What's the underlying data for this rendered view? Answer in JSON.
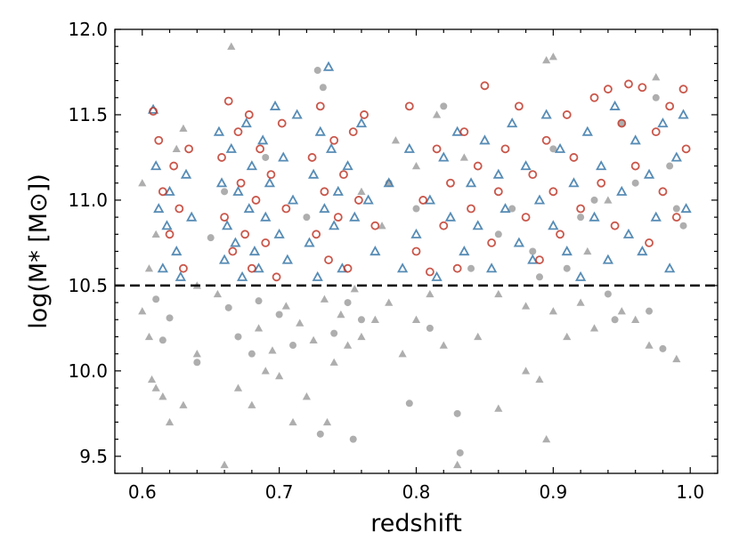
{
  "chart_data": {
    "type": "scatter",
    "xlabel": "redshift",
    "ylabel": "log(M* [M⊙])",
    "xlim": [
      0.58,
      1.02
    ],
    "ylim": [
      9.4,
      12.0
    ],
    "x_ticks": [
      "0.6",
      "0.7",
      "0.8",
      "0.9",
      "1.0"
    ],
    "y_ticks": [
      "9.5",
      "10.0",
      "10.5",
      "11.0",
      "11.5",
      "12.0"
    ],
    "threshold_line": {
      "y": 10.5,
      "style": "dashed",
      "color": "#000000"
    },
    "grid": false,
    "legend": "none",
    "colors": {
      "gray": "#8c8c8c",
      "blue": "#3a78a8",
      "red": "#c0392b"
    },
    "series": [
      {
        "marker": "circle-filled",
        "color": "gray",
        "points": [
          [
            0.61,
            10.42
          ],
          [
            0.62,
            10.31
          ],
          [
            0.615,
            10.18
          ],
          [
            0.64,
            10.05
          ],
          [
            0.663,
            10.37
          ],
          [
            0.67,
            10.2
          ],
          [
            0.68,
            10.1
          ],
          [
            0.685,
            10.41
          ],
          [
            0.7,
            10.33
          ],
          [
            0.71,
            10.15
          ],
          [
            0.728,
            11.76
          ],
          [
            0.732,
            11.66
          ],
          [
            0.73,
            9.63
          ],
          [
            0.754,
            9.6
          ],
          [
            0.74,
            10.22
          ],
          [
            0.75,
            10.4
          ],
          [
            0.76,
            10.3
          ],
          [
            0.795,
            9.81
          ],
          [
            0.83,
            9.75
          ],
          [
            0.832,
            9.52
          ],
          [
            0.82,
            11.55
          ],
          [
            0.81,
            10.25
          ],
          [
            0.84,
            10.6
          ],
          [
            0.86,
            10.8
          ],
          [
            0.87,
            10.95
          ],
          [
            0.885,
            10.7
          ],
          [
            0.9,
            11.3
          ],
          [
            0.92,
            10.9
          ],
          [
            0.93,
            11.0
          ],
          [
            0.94,
            10.45
          ],
          [
            0.945,
            10.3
          ],
          [
            0.96,
            11.1
          ],
          [
            0.97,
            10.35
          ],
          [
            0.98,
            10.13
          ],
          [
            0.985,
            11.2
          ],
          [
            0.99,
            10.95
          ],
          [
            0.995,
            10.85
          ],
          [
            0.66,
            11.05
          ],
          [
            0.65,
            10.78
          ],
          [
            0.69,
            11.25
          ],
          [
            0.72,
            10.9
          ],
          [
            0.78,
            11.1
          ],
          [
            0.8,
            10.95
          ],
          [
            0.89,
            10.55
          ],
          [
            0.91,
            10.6
          ],
          [
            0.95,
            11.45
          ],
          [
            0.975,
            11.6
          ]
        ]
      },
      {
        "marker": "triangle-filled",
        "color": "gray",
        "points": [
          [
            0.665,
            11.9
          ],
          [
            0.6,
            10.35
          ],
          [
            0.605,
            10.2
          ],
          [
            0.607,
            9.95
          ],
          [
            0.61,
            9.9
          ],
          [
            0.615,
            9.85
          ],
          [
            0.62,
            9.7
          ],
          [
            0.63,
            9.8
          ],
          [
            0.64,
            10.1
          ],
          [
            0.66,
            9.45
          ],
          [
            0.67,
            9.9
          ],
          [
            0.68,
            9.8
          ],
          [
            0.69,
            10.0
          ],
          [
            0.7,
            9.97
          ],
          [
            0.71,
            9.7
          ],
          [
            0.72,
            9.85
          ],
          [
            0.735,
            9.7
          ],
          [
            0.74,
            10.05
          ],
          [
            0.75,
            10.15
          ],
          [
            0.76,
            10.2
          ],
          [
            0.77,
            10.3
          ],
          [
            0.78,
            10.4
          ],
          [
            0.79,
            10.1
          ],
          [
            0.8,
            10.3
          ],
          [
            0.81,
            10.45
          ],
          [
            0.82,
            10.15
          ],
          [
            0.83,
            9.45
          ],
          [
            0.845,
            10.2
          ],
          [
            0.86,
            9.78
          ],
          [
            0.88,
            10.0
          ],
          [
            0.89,
            9.95
          ],
          [
            0.9,
            10.35
          ],
          [
            0.91,
            10.2
          ],
          [
            0.92,
            10.4
          ],
          [
            0.93,
            10.25
          ],
          [
            0.95,
            10.35
          ],
          [
            0.96,
            10.3
          ],
          [
            0.97,
            10.15
          ],
          [
            0.99,
            10.07
          ],
          [
            0.895,
            9.6
          ],
          [
            0.86,
            10.45
          ],
          [
            0.88,
            10.38
          ],
          [
            0.64,
            10.5
          ],
          [
            0.655,
            10.45
          ],
          [
            0.685,
            10.25
          ],
          [
            0.695,
            10.12
          ],
          [
            0.705,
            10.38
          ],
          [
            0.715,
            10.28
          ],
          [
            0.725,
            10.18
          ],
          [
            0.733,
            10.42
          ],
          [
            0.745,
            10.33
          ],
          [
            0.755,
            10.48
          ],
          [
            0.625,
            11.3
          ],
          [
            0.63,
            11.42
          ],
          [
            0.6,
            11.1
          ],
          [
            0.61,
            10.8
          ],
          [
            0.605,
            10.6
          ],
          [
            0.9,
            11.84
          ],
          [
            0.895,
            11.82
          ],
          [
            0.975,
            11.72
          ],
          [
            0.94,
            11.0
          ],
          [
            0.925,
            10.7
          ],
          [
            0.8,
            11.2
          ],
          [
            0.785,
            11.35
          ],
          [
            0.815,
            11.5
          ],
          [
            0.835,
            11.25
          ],
          [
            0.76,
            11.05
          ],
          [
            0.775,
            10.85
          ]
        ]
      },
      {
        "marker": "triangle-open",
        "color": "blue",
        "points": [
          [
            0.608,
            11.53
          ],
          [
            0.61,
            11.2
          ],
          [
            0.612,
            10.95
          ],
          [
            0.615,
            10.6
          ],
          [
            0.618,
            10.85
          ],
          [
            0.62,
            11.05
          ],
          [
            0.625,
            10.7
          ],
          [
            0.628,
            10.55
          ],
          [
            0.632,
            11.15
          ],
          [
            0.636,
            10.9
          ],
          [
            0.656,
            11.4
          ],
          [
            0.658,
            11.1
          ],
          [
            0.66,
            10.65
          ],
          [
            0.662,
            10.85
          ],
          [
            0.665,
            11.3
          ],
          [
            0.668,
            10.75
          ],
          [
            0.67,
            11.05
          ],
          [
            0.673,
            10.55
          ],
          [
            0.676,
            11.45
          ],
          [
            0.678,
            10.95
          ],
          [
            0.68,
            11.2
          ],
          [
            0.682,
            10.7
          ],
          [
            0.685,
            10.6
          ],
          [
            0.688,
            11.35
          ],
          [
            0.69,
            10.9
          ],
          [
            0.693,
            11.1
          ],
          [
            0.697,
            11.55
          ],
          [
            0.7,
            10.8
          ],
          [
            0.703,
            11.25
          ],
          [
            0.706,
            10.65
          ],
          [
            0.71,
            11.0
          ],
          [
            0.713,
            11.5
          ],
          [
            0.722,
            10.75
          ],
          [
            0.725,
            11.15
          ],
          [
            0.728,
            10.55
          ],
          [
            0.73,
            11.4
          ],
          [
            0.733,
            10.95
          ],
          [
            0.736,
            11.78
          ],
          [
            0.738,
            11.3
          ],
          [
            0.74,
            10.85
          ],
          [
            0.743,
            11.05
          ],
          [
            0.746,
            10.6
          ],
          [
            0.75,
            11.2
          ],
          [
            0.755,
            10.9
          ],
          [
            0.76,
            11.45
          ],
          [
            0.765,
            11.0
          ],
          [
            0.77,
            10.7
          ],
          [
            0.78,
            11.1
          ],
          [
            0.79,
            10.6
          ],
          [
            0.795,
            11.3
          ],
          [
            0.8,
            10.8
          ],
          [
            0.81,
            11.0
          ],
          [
            0.815,
            10.55
          ],
          [
            0.82,
            11.25
          ],
          [
            0.825,
            10.9
          ],
          [
            0.83,
            11.4
          ],
          [
            0.835,
            10.7
          ],
          [
            0.84,
            11.1
          ],
          [
            0.845,
            10.85
          ],
          [
            0.85,
            11.35
          ],
          [
            0.855,
            10.6
          ],
          [
            0.86,
            11.15
          ],
          [
            0.865,
            10.95
          ],
          [
            0.87,
            11.45
          ],
          [
            0.875,
            10.75
          ],
          [
            0.88,
            11.2
          ],
          [
            0.885,
            10.65
          ],
          [
            0.89,
            11.0
          ],
          [
            0.895,
            11.5
          ],
          [
            0.9,
            10.85
          ],
          [
            0.905,
            11.3
          ],
          [
            0.91,
            10.7
          ],
          [
            0.915,
            11.1
          ],
          [
            0.92,
            10.55
          ],
          [
            0.925,
            11.4
          ],
          [
            0.93,
            10.9
          ],
          [
            0.935,
            11.2
          ],
          [
            0.94,
            10.65
          ],
          [
            0.945,
            11.55
          ],
          [
            0.95,
            11.05
          ],
          [
            0.955,
            10.8
          ],
          [
            0.96,
            11.35
          ],
          [
            0.965,
            10.7
          ],
          [
            0.97,
            11.15
          ],
          [
            0.975,
            10.9
          ],
          [
            0.98,
            11.45
          ],
          [
            0.985,
            10.6
          ],
          [
            0.99,
            11.25
          ],
          [
            0.995,
            11.5
          ],
          [
            0.997,
            10.95
          ]
        ]
      },
      {
        "marker": "circle-open",
        "color": "red",
        "points": [
          [
            0.608,
            11.52
          ],
          [
            0.612,
            11.35
          ],
          [
            0.615,
            11.05
          ],
          [
            0.62,
            10.8
          ],
          [
            0.623,
            11.2
          ],
          [
            0.627,
            10.95
          ],
          [
            0.63,
            10.6
          ],
          [
            0.634,
            11.3
          ],
          [
            0.658,
            11.25
          ],
          [
            0.66,
            10.9
          ],
          [
            0.663,
            11.58
          ],
          [
            0.666,
            10.7
          ],
          [
            0.67,
            11.4
          ],
          [
            0.672,
            11.1
          ],
          [
            0.675,
            10.8
          ],
          [
            0.678,
            11.5
          ],
          [
            0.68,
            10.6
          ],
          [
            0.683,
            11.0
          ],
          [
            0.686,
            11.3
          ],
          [
            0.69,
            10.75
          ],
          [
            0.694,
            11.15
          ],
          [
            0.698,
            10.55
          ],
          [
            0.702,
            11.45
          ],
          [
            0.705,
            10.95
          ],
          [
            0.724,
            11.25
          ],
          [
            0.727,
            10.8
          ],
          [
            0.73,
            11.55
          ],
          [
            0.733,
            11.05
          ],
          [
            0.736,
            10.65
          ],
          [
            0.74,
            11.35
          ],
          [
            0.743,
            10.9
          ],
          [
            0.747,
            11.15
          ],
          [
            0.75,
            10.6
          ],
          [
            0.754,
            11.4
          ],
          [
            0.758,
            11.0
          ],
          [
            0.762,
            11.5
          ],
          [
            0.77,
            10.85
          ],
          [
            0.795,
            11.55
          ],
          [
            0.8,
            10.7
          ],
          [
            0.805,
            11.0
          ],
          [
            0.81,
            10.58
          ],
          [
            0.815,
            11.3
          ],
          [
            0.82,
            10.85
          ],
          [
            0.825,
            11.1
          ],
          [
            0.83,
            10.6
          ],
          [
            0.835,
            11.4
          ],
          [
            0.84,
            10.95
          ],
          [
            0.845,
            11.2
          ],
          [
            0.85,
            11.67
          ],
          [
            0.855,
            10.75
          ],
          [
            0.86,
            11.05
          ],
          [
            0.865,
            11.3
          ],
          [
            0.875,
            11.55
          ],
          [
            0.88,
            10.9
          ],
          [
            0.885,
            11.15
          ],
          [
            0.89,
            10.65
          ],
          [
            0.895,
            11.35
          ],
          [
            0.9,
            11.05
          ],
          [
            0.905,
            10.8
          ],
          [
            0.91,
            11.5
          ],
          [
            0.915,
            11.25
          ],
          [
            0.92,
            10.95
          ],
          [
            0.93,
            11.6
          ],
          [
            0.935,
            11.1
          ],
          [
            0.94,
            11.65
          ],
          [
            0.945,
            10.85
          ],
          [
            0.95,
            11.45
          ],
          [
            0.955,
            11.68
          ],
          [
            0.96,
            11.2
          ],
          [
            0.965,
            11.66
          ],
          [
            0.97,
            10.75
          ],
          [
            0.975,
            11.4
          ],
          [
            0.98,
            11.05
          ],
          [
            0.985,
            11.55
          ],
          [
            0.99,
            10.9
          ],
          [
            0.995,
            11.65
          ],
          [
            0.997,
            11.3
          ]
        ]
      }
    ]
  }
}
